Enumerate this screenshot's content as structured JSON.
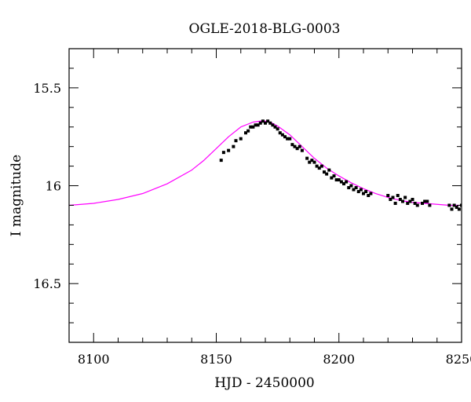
{
  "chart_data": {
    "type": "scatter",
    "title": "OGLE-2018-BLG-0003",
    "xlabel": "HJD - 2450000",
    "ylabel": "I magnitude",
    "xlim": [
      8090,
      8250
    ],
    "ylim": [
      16.8,
      15.3
    ],
    "y_inverted": true,
    "x_ticks": [
      8100,
      8150,
      8200,
      8250
    ],
    "x_tick_labels": [
      "8100",
      "8150",
      "8200",
      "8250"
    ],
    "y_ticks": [
      15.5,
      16,
      16.5
    ],
    "y_tick_labels": [
      "15.5",
      "16",
      "16.5"
    ],
    "x_minor_step": 10,
    "y_minor_step": 0.1,
    "grid": false,
    "legend": "none",
    "colors": {
      "data": "#000000",
      "model": "#ff00ff"
    },
    "model": {
      "x": [
        8090,
        8100,
        8110,
        8120,
        8130,
        8140,
        8145,
        8150,
        8155,
        8160,
        8165,
        8168,
        8170,
        8172,
        8175,
        8180,
        8185,
        8190,
        8195,
        8200,
        8205,
        8210,
        8215,
        8220,
        8225,
        8230,
        8235,
        8240,
        8245,
        8250
      ],
      "y": [
        16.1,
        16.09,
        16.07,
        16.04,
        15.99,
        15.92,
        15.87,
        15.81,
        15.75,
        15.7,
        15.675,
        15.67,
        15.67,
        15.675,
        15.695,
        15.74,
        15.8,
        15.86,
        15.91,
        15.95,
        15.985,
        16.015,
        16.04,
        16.06,
        16.075,
        16.085,
        16.09,
        16.095,
        16.1,
        16.1
      ]
    },
    "points": {
      "x": [
        8152,
        8153,
        8155,
        8157,
        8158,
        8160,
        8162,
        8163,
        8164,
        8165,
        8166,
        8167,
        8168,
        8169,
        8170,
        8171,
        8172,
        8173,
        8174,
        8175,
        8176,
        8177,
        8178,
        8179,
        8180,
        8181,
        8182,
        8183,
        8184,
        8185,
        8187,
        8188,
        8189,
        8190,
        8191,
        8192,
        8193,
        8194,
        8195,
        8196,
        8197,
        8198,
        8199,
        8200,
        8201,
        8202,
        8203,
        8204,
        8205,
        8206,
        8207,
        8208,
        8209,
        8210,
        8211,
        8212,
        8213,
        8220,
        8221,
        8222,
        8223,
        8224,
        8225,
        8226,
        8227,
        8228,
        8229,
        8230,
        8231,
        8232,
        8234,
        8235,
        8236,
        8237,
        8245,
        8246,
        8247,
        8248,
        8249,
        8250
      ],
      "y": [
        15.87,
        15.83,
        15.82,
        15.8,
        15.77,
        15.76,
        15.73,
        15.72,
        15.7,
        15.7,
        15.69,
        15.69,
        15.68,
        15.67,
        15.68,
        15.67,
        15.68,
        15.69,
        15.7,
        15.71,
        15.73,
        15.74,
        15.75,
        15.76,
        15.76,
        15.79,
        15.8,
        15.81,
        15.8,
        15.82,
        15.86,
        15.88,
        15.87,
        15.88,
        15.9,
        15.91,
        15.9,
        15.93,
        15.94,
        15.92,
        15.96,
        15.95,
        15.97,
        15.97,
        15.98,
        15.99,
        15.98,
        16.01,
        16.0,
        16.02,
        16.01,
        16.03,
        16.02,
        16.04,
        16.03,
        16.05,
        16.04,
        16.05,
        16.07,
        16.06,
        16.09,
        16.05,
        16.07,
        16.08,
        16.06,
        16.09,
        16.08,
        16.07,
        16.09,
        16.1,
        16.09,
        16.08,
        16.08,
        16.1,
        16.1,
        16.12,
        16.1,
        16.11,
        16.12,
        16.1
      ]
    }
  }
}
